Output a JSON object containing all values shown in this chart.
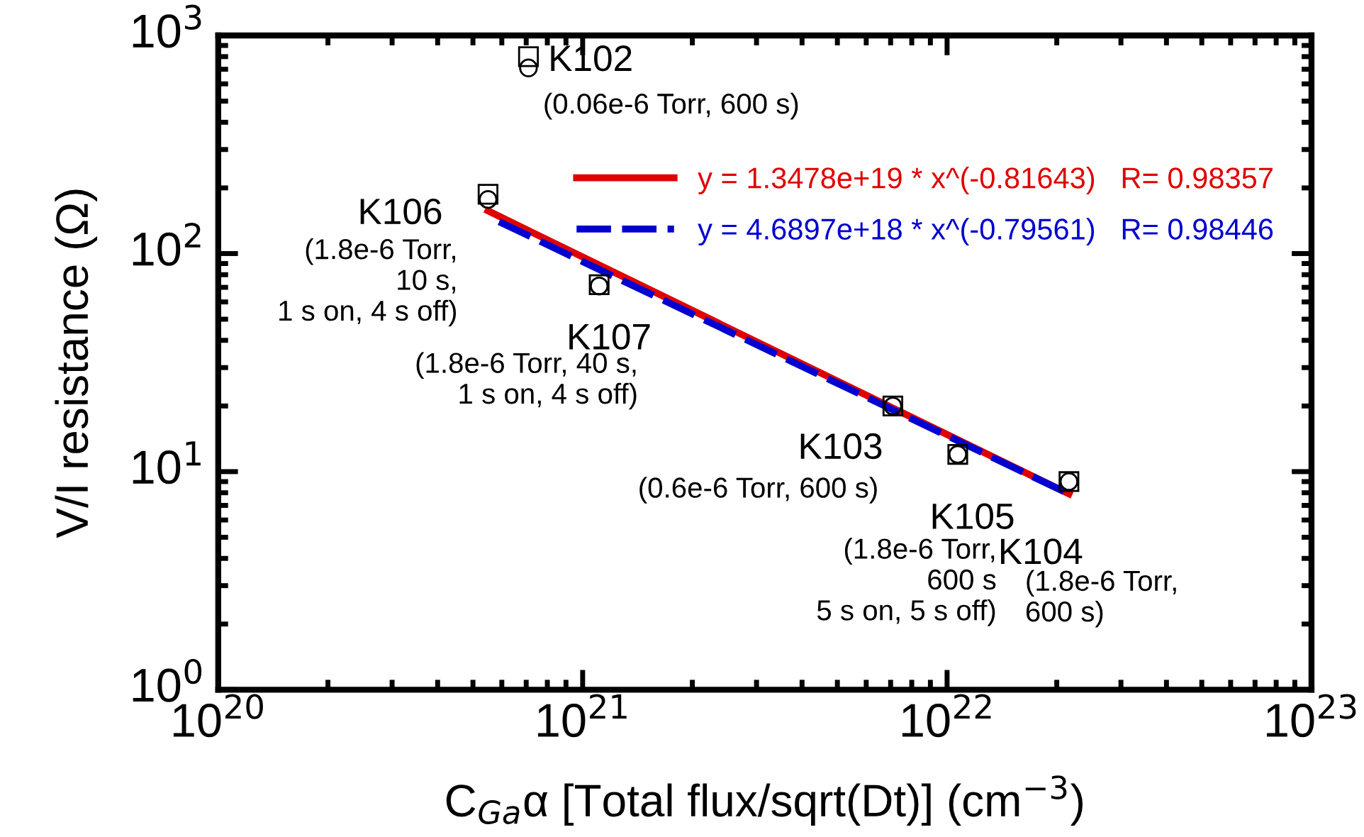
{
  "chart_data": {
    "type": "scatter",
    "xlabel": "C$_{Ga}$α [Total flux/sqrt(Dt)] (cm$^{−3}$)",
    "ylabel": "V/I resistance (Ω)",
    "log": "xy",
    "xlim": [
      1e+20,
      1e+23
    ],
    "ylim": [
      1,
      1000
    ],
    "xticks": [
      {
        "value": 1e+20,
        "label": "10$^{20}$"
      },
      {
        "value": 1e+21,
        "label": "10$^{21}$"
      },
      {
        "value": 1e+22,
        "label": "10$^{22}$"
      },
      {
        "value": 1e+23,
        "label": "10$^{23}$"
      }
    ],
    "yticks": [
      {
        "value": 1,
        "label": "10$^{0}$"
      },
      {
        "value": 10,
        "label": "10$^{1}$"
      },
      {
        "value": 100,
        "label": "10$^{2}$"
      },
      {
        "value": 1000,
        "label": "10$^{3}$"
      }
    ],
    "grid": false,
    "legend": "top right",
    "series": [
      {
        "marker": "square",
        "color": "#000000",
        "x": [
          7.1e+20,
          5.5e+20,
          1.11e+21,
          7.1e+21,
          1.07e+22,
          2.16e+22
        ],
        "values": [
          800,
          187,
          72,
          20,
          12,
          9
        ]
      },
      {
        "marker": "circle",
        "color": "#000000",
        "x": [
          7.1e+20,
          5.5e+20,
          1.11e+21,
          7.1e+21,
          1.07e+22,
          2.16e+22
        ],
        "values": [
          710,
          177,
          71,
          20,
          12,
          9
        ]
      },
      {
        "type": "line",
        "line_style": "solid",
        "name": "y = 1.3478e+19 * x^(-0.81643)   R= 0.98357",
        "color": "#e00000",
        "x": [
          5.5e+20,
          2.16e+22
        ],
        "values": [
          157,
          7.9
        ]
      },
      {
        "type": "line",
        "line_style": "dashed",
        "name": "y = 4.6897e+18 * x^(-0.79561)   R= 0.98446",
        "color": "#0000d0",
        "x": [
          5.9e+20,
          2.16e+22
        ],
        "values": [
          140,
          7.9
        ]
      }
    ],
    "annotations": [
      {
        "text": "K102",
        "x": 7.1e+20,
        "y": 760
      },
      "(0.06e-6 Torr, 600 s)",
      {
        "text": "K106",
        "x": 5.5e+20,
        "y": 182
      },
      "(1.8e-6 Torr,\n10 s,\n1 s on, 4 s off)",
      {
        "text": "K107",
        "x": 1.11e+21,
        "y": 72
      },
      "(1.8e-6 Torr, 40 s,\n1 s on, 4 s off)",
      {
        "text": "K103",
        "x": 7.1e+21,
        "y": 20
      },
      "(0.6e-6 Torr, 600 s)",
      {
        "text": "K105",
        "x": 1.07e+22,
        "y": 12
      },
      "(1.8e-6 Torr,\n600 s\n5 s on, 5 s off)",
      {
        "text": "K104",
        "x": 2.16e+22,
        "y": 9
      },
      "(1.8e-6 Torr,\n600 s)"
    ]
  }
}
